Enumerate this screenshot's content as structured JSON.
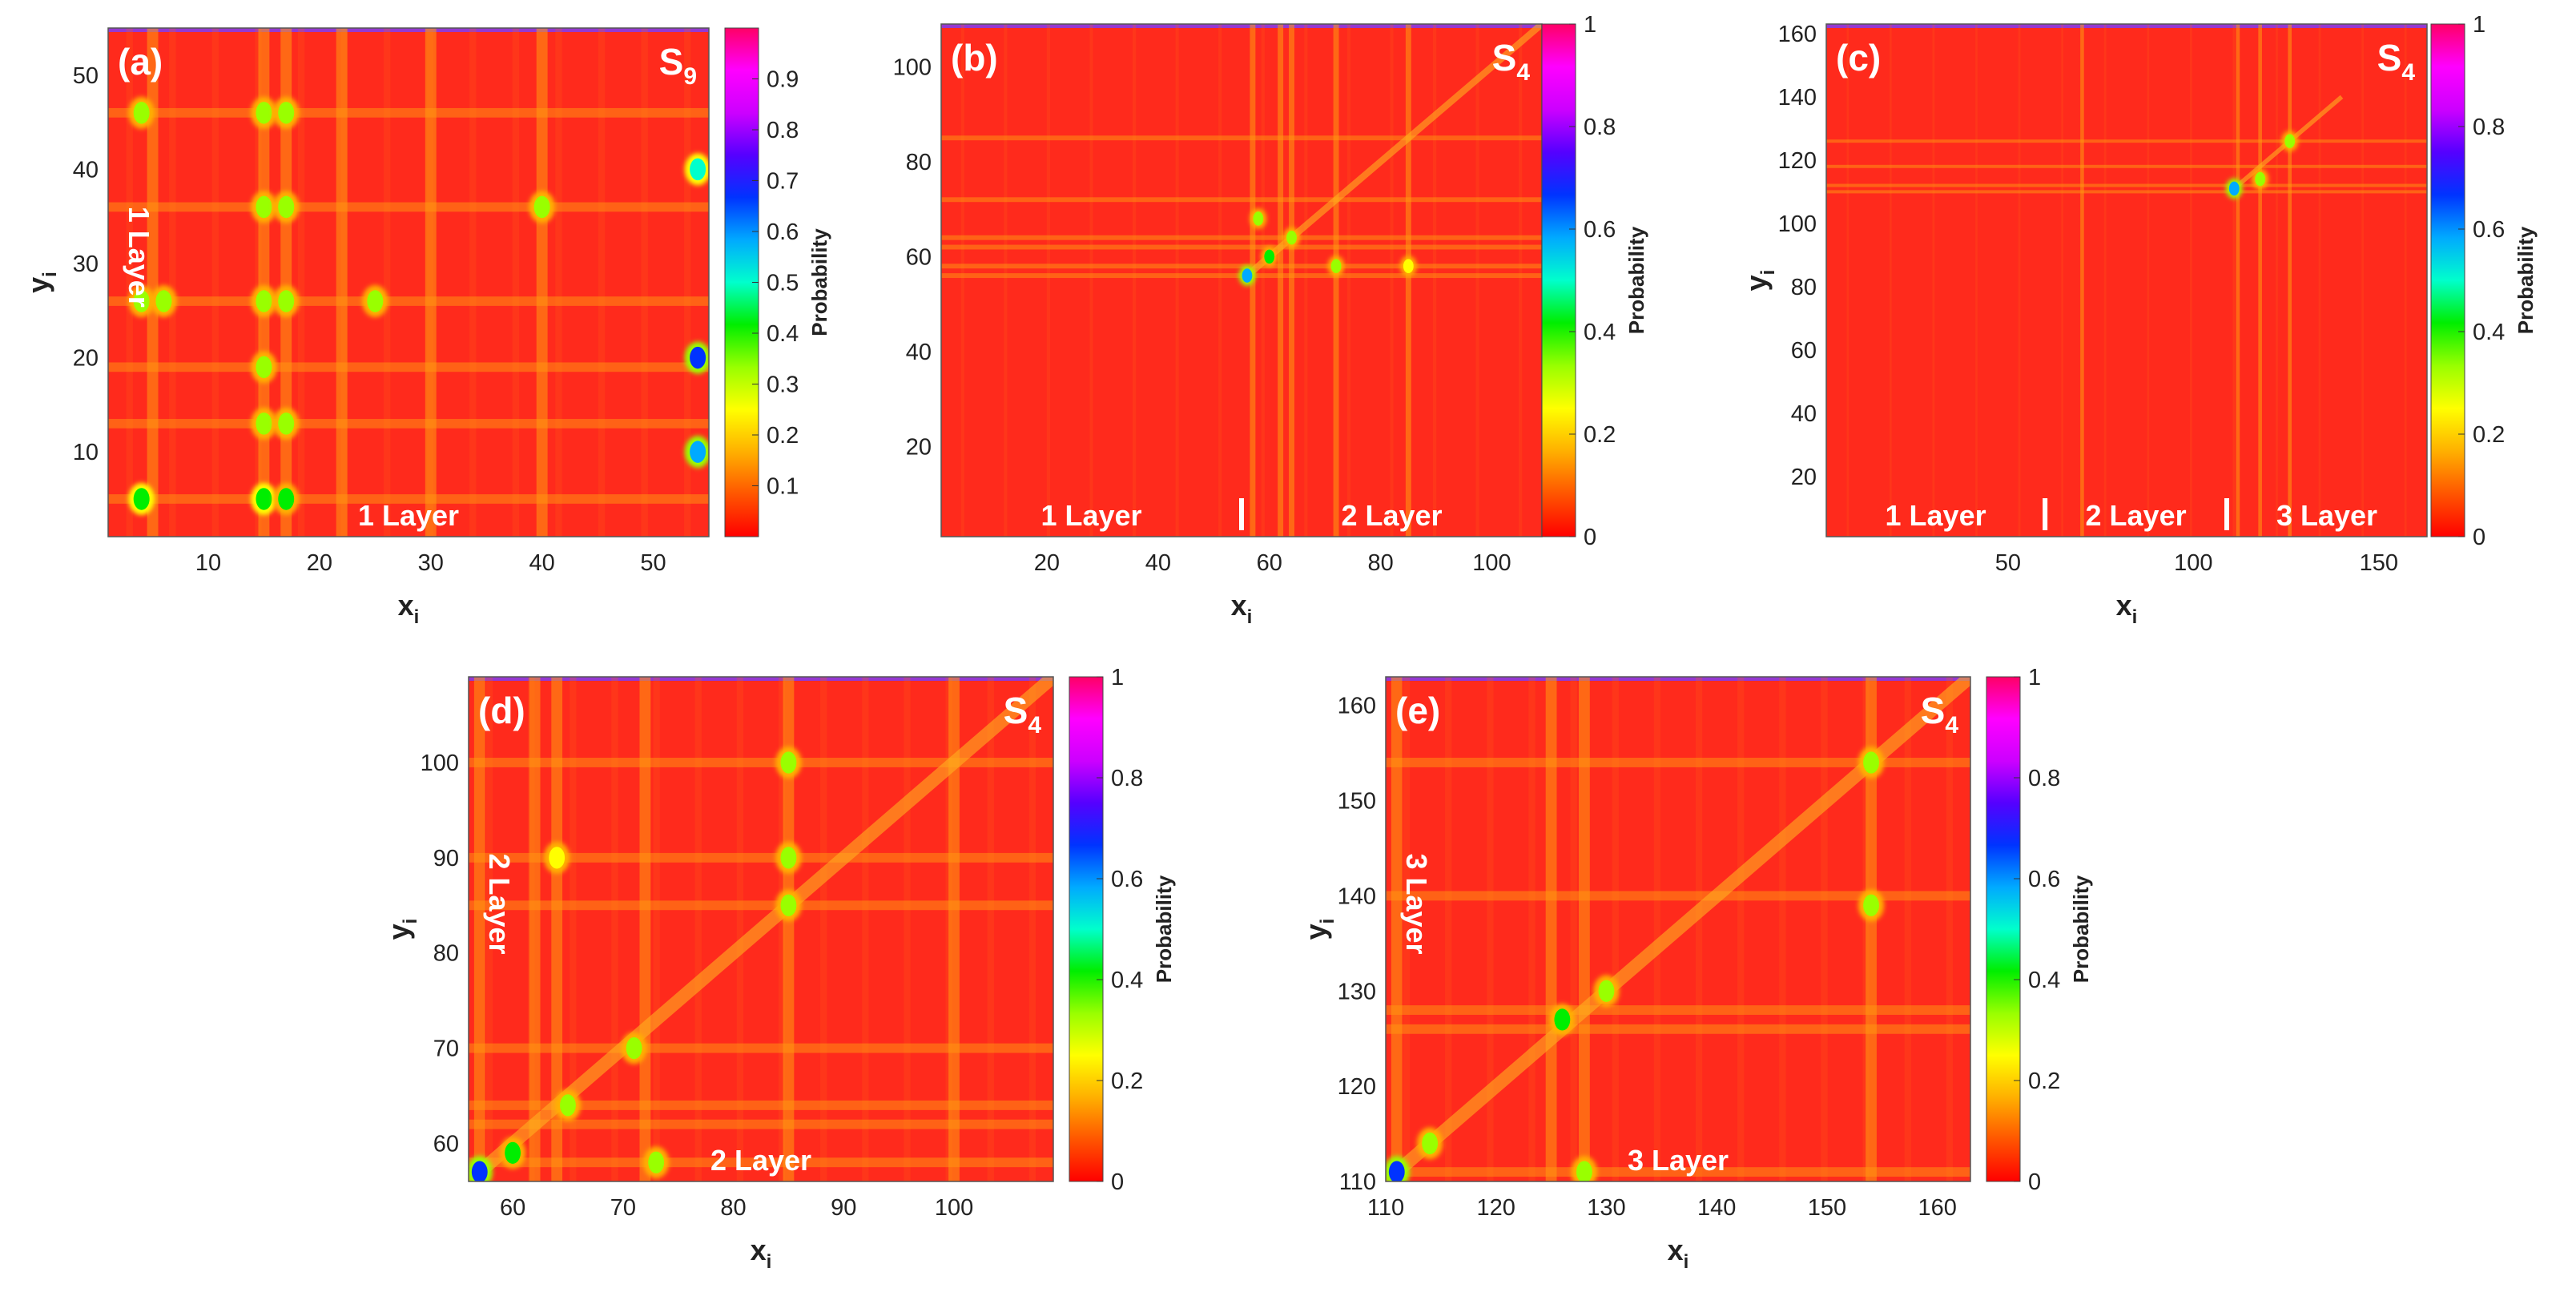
{
  "colors": {
    "background": "#ff2a1c",
    "colormap": [
      "#ff0000",
      "#ff5500",
      "#ffb000",
      "#ffff00",
      "#99ff00",
      "#00ee00",
      "#00ffcc",
      "#00aaff",
      "#0033ff",
      "#5500ff",
      "#cc00ff",
      "#ff00ff",
      "#ff0066"
    ]
  },
  "chart_data": [
    {
      "type": "heatmap",
      "panel_label": "(a)",
      "state_main": "S",
      "state_sub": "9",
      "xlabel_main": "x",
      "xlabel_sub": "i",
      "ylabel_main": "y",
      "ylabel_sub": "i",
      "colorbar_label": "Probability",
      "xlim": [
        1,
        55
      ],
      "ylim": [
        1,
        55
      ],
      "clim": [
        0,
        1
      ],
      "xticks": [
        10,
        20,
        30,
        40,
        50
      ],
      "yticks": [
        10,
        20,
        30,
        40,
        50
      ],
      "cticks": [
        0.1,
        0.2,
        0.3,
        0.4,
        0.5,
        0.6,
        0.7,
        0.8,
        0.9
      ],
      "x_tick_labels": [
        "10",
        "20",
        "30",
        "40",
        "50"
      ],
      "y_tick_labels": [
        "10",
        "20",
        "30",
        "40",
        "50"
      ],
      "c_tick_labels": [
        "0.1",
        "0.2",
        "0.3",
        "0.4",
        "0.5",
        "0.6",
        "0.7",
        "0.8",
        "0.9"
      ],
      "layer_labels_x": [
        {
          "text": "1 Layer",
          "from": 1,
          "to": 55
        }
      ],
      "layer_labels_y": [
        {
          "text": "1 Layer",
          "from": 1,
          "to": 55
        }
      ],
      "separators_x": [],
      "x_lines": [
        5,
        15,
        17,
        22,
        30,
        40
      ],
      "y_lines": [
        5,
        13,
        19,
        26,
        36,
        46
      ],
      "hot_spots": [
        {
          "x": 4,
          "y": 5,
          "v": 0.45
        },
        {
          "x": 15,
          "y": 5,
          "v": 0.45
        },
        {
          "x": 17,
          "y": 5,
          "v": 0.4
        },
        {
          "x": 15,
          "y": 46,
          "v": 0.35
        },
        {
          "x": 17,
          "y": 46,
          "v": 0.3
        },
        {
          "x": 15,
          "y": 36,
          "v": 0.35
        },
        {
          "x": 17,
          "y": 36,
          "v": 0.3
        },
        {
          "x": 15,
          "y": 26,
          "v": 0.35
        },
        {
          "x": 17,
          "y": 26,
          "v": 0.35
        },
        {
          "x": 4,
          "y": 26,
          "v": 0.3
        },
        {
          "x": 6,
          "y": 26,
          "v": 0.3
        },
        {
          "x": 15,
          "y": 13,
          "v": 0.3
        },
        {
          "x": 17,
          "y": 13,
          "v": 0.3
        },
        {
          "x": 15,
          "y": 19,
          "v": 0.3
        },
        {
          "x": 40,
          "y": 36,
          "v": 0.3
        },
        {
          "x": 4,
          "y": 46,
          "v": 0.3
        },
        {
          "x": 25,
          "y": 26,
          "v": 0.3
        },
        {
          "x": 54,
          "y": 20,
          "v": 0.7
        },
        {
          "x": 54,
          "y": 40,
          "v": 0.5
        },
        {
          "x": 54,
          "y": 10,
          "v": 0.6
        }
      ],
      "diagonal": null
    },
    {
      "type": "heatmap",
      "panel_label": "(b)",
      "state_main": "S",
      "state_sub": "4",
      "xlabel_main": "x",
      "xlabel_sub": "i",
      "ylabel_main": "",
      "ylabel_sub": "",
      "colorbar_label": "Probability",
      "xlim": [
        1,
        109
      ],
      "ylim": [
        1,
        109
      ],
      "clim": [
        0,
        1
      ],
      "xticks": [
        20,
        40,
        60,
        80,
        100
      ],
      "yticks": [
        20,
        40,
        60,
        80,
        100
      ],
      "cticks": [
        0,
        0.2,
        0.4,
        0.6,
        0.8,
        1
      ],
      "x_tick_labels": [
        "20",
        "40",
        "60",
        "80",
        "100"
      ],
      "y_tick_labels": [
        "20",
        "40",
        "60",
        "80",
        "100"
      ],
      "c_tick_labels": [
        "0",
        "0.2",
        "0.4",
        "0.6",
        "0.8",
        "1"
      ],
      "layer_labels_x": [
        {
          "text": "1 Layer",
          "from": 1,
          "to": 55
        },
        {
          "text": "2 Layer",
          "from": 55,
          "to": 109
        }
      ],
      "layer_labels_y": [],
      "separators_x": [
        55
      ],
      "x_lines": [
        57,
        62,
        64,
        72,
        85
      ],
      "y_lines": [
        56,
        58,
        62,
        64,
        72,
        85
      ],
      "hot_spots": [
        {
          "x": 56,
          "y": 56,
          "v": 0.6
        },
        {
          "x": 60,
          "y": 60,
          "v": 0.4
        },
        {
          "x": 64,
          "y": 64,
          "v": 0.35
        },
        {
          "x": 72,
          "y": 58,
          "v": 0.3
        },
        {
          "x": 85,
          "y": 58,
          "v": 0.25
        },
        {
          "x": 58,
          "y": 68,
          "v": 0.3
        }
      ],
      "diagonal": [
        56,
        109
      ]
    },
    {
      "type": "heatmap",
      "panel_label": "(c)",
      "state_main": "S",
      "state_sub": "4",
      "xlabel_main": "x",
      "xlabel_sub": "i",
      "ylabel_main": "y",
      "ylabel_sub": "i",
      "colorbar_label": "Probability",
      "xlim": [
        1,
        163
      ],
      "ylim": [
        1,
        163
      ],
      "clim": [
        0,
        1
      ],
      "xticks": [
        50,
        100,
        150
      ],
      "yticks": [
        20,
        40,
        60,
        80,
        100,
        120,
        140,
        160
      ],
      "cticks": [
        0,
        0.2,
        0.4,
        0.6,
        0.8,
        1
      ],
      "x_tick_labels": [
        "50",
        "100",
        "150"
      ],
      "y_tick_labels": [
        "20",
        "40",
        "60",
        "80",
        "100",
        "120",
        "140",
        "160"
      ],
      "c_tick_labels": [
        "0",
        "0.2",
        "0.4",
        "0.6",
        "0.8",
        "1"
      ],
      "layer_labels_x": [
        {
          "text": "1 Layer",
          "from": 1,
          "to": 60
        },
        {
          "text": "2 Layer",
          "from": 60,
          "to": 109
        },
        {
          "text": "3 Layer",
          "from": 109,
          "to": 163
        }
      ],
      "layer_labels_y": [],
      "separators_x": [
        60,
        109
      ],
      "x_lines": [
        70,
        112,
        118,
        126
      ],
      "y_lines": [
        110,
        112,
        118,
        126
      ],
      "hot_spots": [
        {
          "x": 111,
          "y": 111,
          "v": 0.6
        },
        {
          "x": 118,
          "y": 114,
          "v": 0.35
        },
        {
          "x": 126,
          "y": 126,
          "v": 0.3
        }
      ],
      "diagonal": [
        110,
        140
      ]
    },
    {
      "type": "heatmap",
      "panel_label": "(d)",
      "state_main": "S",
      "state_sub": "4",
      "xlabel_main": "x",
      "xlabel_sub": "i",
      "ylabel_main": "y",
      "ylabel_sub": "i",
      "colorbar_label": "Probability",
      "xlim": [
        56,
        109
      ],
      "ylim": [
        56,
        109
      ],
      "clim": [
        0,
        1
      ],
      "xticks": [
        60,
        70,
        80,
        90,
        100
      ],
      "yticks": [
        60,
        70,
        80,
        90,
        100
      ],
      "cticks": [
        0,
        0.2,
        0.4,
        0.6,
        0.8,
        1
      ],
      "x_tick_labels": [
        "60",
        "70",
        "80",
        "90",
        "100"
      ],
      "y_tick_labels": [
        "60",
        "70",
        "80",
        "90",
        "100"
      ],
      "c_tick_labels": [
        "0",
        "0.2",
        "0.4",
        "0.6",
        "0.8",
        "1"
      ],
      "layer_labels_x": [
        {
          "text": "2 Layer",
          "from": 56,
          "to": 109
        }
      ],
      "layer_labels_y": [
        {
          "text": "2 Layer",
          "from": 56,
          "to": 109
        }
      ],
      "separators_x": [],
      "x_lines": [
        57,
        62,
        64,
        72,
        85,
        100
      ],
      "y_lines": [
        58,
        62,
        64,
        70,
        85,
        90,
        100
      ],
      "hot_spots": [
        {
          "x": 57,
          "y": 57,
          "v": 0.65
        },
        {
          "x": 60,
          "y": 59,
          "v": 0.4
        },
        {
          "x": 65,
          "y": 64,
          "v": 0.35
        },
        {
          "x": 71,
          "y": 70,
          "v": 0.3
        },
        {
          "x": 73,
          "y": 58,
          "v": 0.35
        },
        {
          "x": 85,
          "y": 100,
          "v": 0.3
        },
        {
          "x": 85,
          "y": 90,
          "v": 0.3
        },
        {
          "x": 85,
          "y": 85,
          "v": 0.3
        },
        {
          "x": 64,
          "y": 90,
          "v": 0.25
        }
      ],
      "diagonal": [
        56,
        109
      ]
    },
    {
      "type": "heatmap",
      "panel_label": "(e)",
      "state_main": "S",
      "state_sub": "4",
      "xlabel_main": "x",
      "xlabel_sub": "i",
      "ylabel_main": "y",
      "ylabel_sub": "i",
      "colorbar_label": "Probability",
      "xlim": [
        110,
        163
      ],
      "ylim": [
        110,
        163
      ],
      "clim": [
        0,
        1
      ],
      "xticks": [
        110,
        120,
        130,
        140,
        150,
        160
      ],
      "yticks": [
        110,
        120,
        130,
        140,
        150,
        160
      ],
      "cticks": [
        0,
        0.2,
        0.4,
        0.6,
        0.8,
        1
      ],
      "x_tick_labels": [
        "110",
        "120",
        "130",
        "140",
        "150",
        "160"
      ],
      "y_tick_labels": [
        "110",
        "120",
        "130",
        "140",
        "150",
        "160"
      ],
      "c_tick_labels": [
        "0",
        "0.2",
        "0.4",
        "0.6",
        "0.8",
        "1"
      ],
      "layer_labels_x": [
        {
          "text": "3 Layer",
          "from": 110,
          "to": 163
        }
      ],
      "layer_labels_y": [
        {
          "text": "3 Layer",
          "from": 110,
          "to": 163
        }
      ],
      "separators_x": [],
      "x_lines": [
        111,
        125,
        128,
        154
      ],
      "y_lines": [
        111,
        126,
        128,
        140,
        154
      ],
      "hot_spots": [
        {
          "x": 111,
          "y": 111,
          "v": 0.65
        },
        {
          "x": 114,
          "y": 114,
          "v": 0.35
        },
        {
          "x": 126,
          "y": 127,
          "v": 0.4
        },
        {
          "x": 130,
          "y": 130,
          "v": 0.35
        },
        {
          "x": 154,
          "y": 154,
          "v": 0.3
        },
        {
          "x": 154,
          "y": 139,
          "v": 0.3
        },
        {
          "x": 128,
          "y": 111,
          "v": 0.3
        }
      ],
      "diagonal": [
        110,
        163
      ]
    }
  ]
}
